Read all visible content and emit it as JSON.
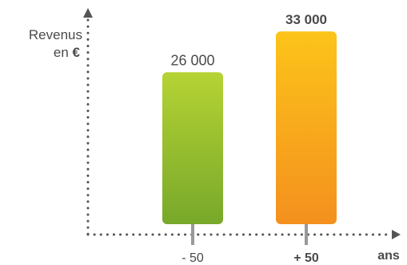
{
  "chart_data": {
    "type": "bar",
    "ylabel_line1": "Revenus",
    "ylabel_line2_prefix": "en ",
    "ylabel_line2_unit": "€",
    "xlabel": "ans",
    "categories": [
      "- 50",
      "+ 50"
    ],
    "values": [
      26000,
      33000
    ],
    "value_labels": [
      "26 000",
      "33 000"
    ],
    "ylim": [
      0,
      37000
    ],
    "grid": false,
    "bold_flags": [
      false,
      true
    ]
  },
  "colors": {
    "bar1_top": "#b5d334",
    "bar1_bottom": "#78a82a",
    "bar2_top": "#fcc41a",
    "bar2_bottom": "#f4901e",
    "axis": "#555555",
    "tick": "#999999",
    "text": "#4a4a4a"
  }
}
